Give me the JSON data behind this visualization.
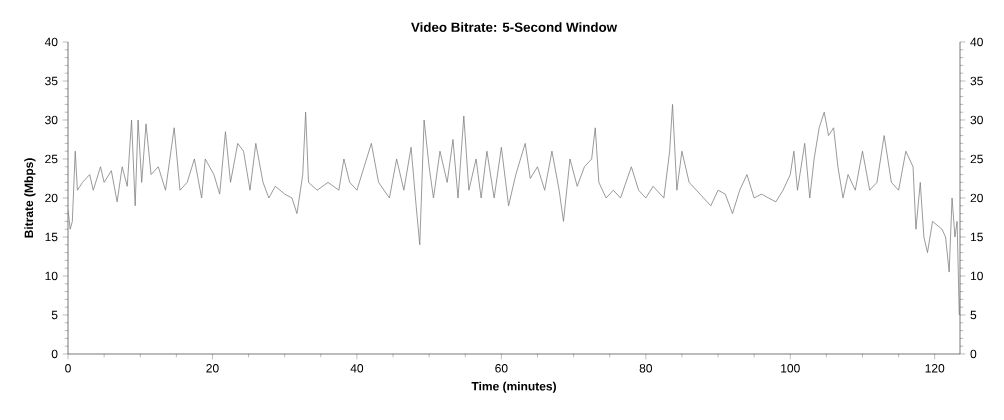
{
  "chart_data": {
    "type": "line",
    "title": "Video Bitrate: 5-Second Window",
    "xlabel": "Time (minutes)",
    "ylabel": "Bitrate (Mbps)",
    "x": [
      0,
      0.3,
      0.6,
      1.0,
      1.3,
      2,
      3,
      3.5,
      4.5,
      5,
      6,
      6.8,
      7.5,
      8.2,
      8.8,
      9.3,
      9.7,
      10.2,
      10.8,
      11.5,
      12.5,
      13.5,
      14.7,
      15.5,
      16.5,
      17.5,
      18.5,
      19,
      20.2,
      21,
      21.8,
      22.5,
      23.5,
      24.3,
      25.2,
      26,
      27,
      27.8,
      28.7,
      30,
      31,
      31.7,
      32.5,
      32.9,
      33.3,
      34.5,
      36,
      37.5,
      38.2,
      39,
      40,
      41,
      42,
      43,
      44.5,
      45.5,
      46.5,
      47.5,
      48.2,
      48.7,
      49.3,
      50,
      50.6,
      51.5,
      52.5,
      53.3,
      54,
      54.8,
      55.5,
      56.5,
      57.2,
      58,
      59,
      60,
      61,
      62,
      63.3,
      64,
      65,
      66,
      67,
      68,
      68.6,
      69.5,
      70.5,
      71.5,
      72.5,
      73,
      73.5,
      74.5,
      75.5,
      76.5,
      78,
      79,
      80,
      81,
      82.5,
      83.3,
      83.7,
      84.3,
      85,
      86,
      87,
      88,
      89,
      90,
      91,
      92,
      93,
      94,
      95,
      96,
      97,
      98,
      99,
      100,
      100.5,
      101,
      102,
      102.7,
      103.3,
      104,
      104.7,
      105.3,
      106,
      106.6,
      107.3,
      108,
      109,
      110,
      111,
      112,
      113,
      114,
      115,
      116,
      117,
      117.4,
      118,
      118.5,
      119,
      119.7,
      121,
      121.5,
      122,
      122.4,
      122.8,
      123.1,
      123.4
    ],
    "values": [
      18.5,
      16,
      17,
      26,
      21,
      22,
      23,
      21,
      24,
      22,
      23.5,
      19.5,
      24,
      21.5,
      30,
      19,
      30,
      22,
      29.5,
      23,
      24,
      21,
      29,
      21,
      22,
      25,
      20,
      25,
      23,
      20.5,
      28.5,
      22,
      27,
      26,
      21,
      27,
      22,
      20,
      21.5,
      20.5,
      20,
      18,
      23,
      31,
      22,
      21,
      22,
      21,
      25,
      22,
      21,
      24,
      27,
      22,
      20,
      25,
      21,
      26.5,
      19,
      14,
      30,
      24,
      20,
      26,
      22,
      27.5,
      20,
      30.5,
      21,
      25,
      20,
      26,
      20,
      26.5,
      19,
      23,
      27,
      22.5,
      24,
      21,
      26,
      21,
      17,
      25,
      21.5,
      24,
      25,
      29,
      22,
      20,
      21,
      20,
      24,
      21,
      20,
      21.5,
      20,
      26,
      32,
      21,
      26,
      22,
      21,
      20,
      19,
      21,
      20.5,
      18,
      21,
      23,
      20,
      20.5,
      20,
      19.5,
      21,
      23,
      26,
      21,
      27,
      20,
      25,
      29,
      31,
      28,
      29,
      24,
      20,
      23,
      21,
      26,
      21,
      22,
      28,
      22,
      21,
      26,
      24,
      16,
      22,
      15,
      13,
      17,
      16,
      15,
      10.5,
      20,
      15,
      17,
      5
    ],
    "color": "#808080",
    "xlim": [
      0,
      123.5
    ],
    "xticks": [
      0,
      20,
      40,
      60,
      80,
      100,
      120
    ],
    "ylim": [
      0,
      40
    ],
    "yticks": [
      0,
      5,
      10,
      15,
      20,
      25,
      30,
      35,
      40
    ],
    "y2lim": [
      0,
      40
    ],
    "y2ticks": [
      0,
      5,
      10,
      15,
      20,
      25,
      30,
      35,
      40
    ]
  }
}
